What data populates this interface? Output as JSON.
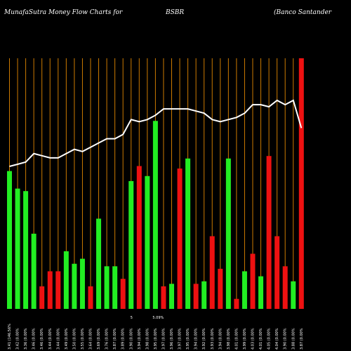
{
  "header": {
    "left": "MunafaSutra  Money Flow  Charts for",
    "center": "BSBR",
    "right": "(Banco   Santander"
  },
  "colors": {
    "background": "#000000",
    "up": "#22ee22",
    "down": "#ee1111",
    "line": "#ffffff",
    "grid": "#cc7a00",
    "label": "#ffffff"
  },
  "chart_data": {
    "type": "bar",
    "title": "",
    "categories": [
      "3.41 (146.56%",
      "3.42 (0.00%",
      "3.36 (0.00%",
      "3.46 (0.00%",
      "3.46 (0.00%",
      "3.44 (0.00%",
      "3.44 (0.00%",
      "3.49 (0.00%",
      "3.50 (0.00%",
      "3.55 (0.00%",
      "3.64 (0.00%",
      "3.69 (0.00%",
      "3.76 (0.00%",
      "3.87 (0.00%",
      "3.89 (0.00%",
      "3.90 (0.00%",
      "3.94 (0.00%",
      "3.98 (0.00%",
      "3.95 (0.00%",
      "3.97 (0.00%",
      "3.96 (0.00%",
      "3.97 (0.00%",
      "3.95 (0.00%",
      "3.94 (0.00%",
      "3.92 (0.00%",
      "3.93 (0.00%",
      "3.94 (0.00%",
      "3.98 (0.00%",
      "4.01 (0.00%",
      "3.99 (0.00%",
      "4.03 (0.00%",
      "4.01 (0.00%",
      "4.05 (0.00%",
      "4.04 (0.00%",
      "3.90 (0.00%",
      "3.88 (0.00%",
      "3.87 (0.00%"
    ],
    "bar_colors": [
      "green",
      "green",
      "green",
      "green",
      "red",
      "red",
      "red",
      "green",
      "green",
      "green",
      "red",
      "green",
      "green",
      "green",
      "red",
      "green",
      "red",
      "green",
      "green",
      "red",
      "green",
      "red",
      "green",
      "red",
      "green",
      "red",
      "red",
      "green",
      "red",
      "green",
      "red",
      "green",
      "red",
      "red",
      "red",
      "green",
      "red"
    ],
    "flow_values": [
      55,
      48,
      47,
      30,
      9,
      15,
      15,
      23,
      18,
      20,
      9,
      36,
      17,
      17,
      12,
      51,
      57,
      53,
      75,
      9,
      10,
      56,
      60,
      10,
      11,
      29,
      16,
      60,
      4,
      15,
      22,
      13,
      61,
      29,
      17,
      11,
      100
    ],
    "price_line": [
      57,
      58,
      59,
      63,
      62,
      61,
      61,
      63,
      65,
      64,
      66,
      68,
      70,
      70,
      72,
      79,
      78,
      79,
      81,
      84,
      84,
      84,
      84,
      83,
      82,
      79,
      78,
      79,
      80,
      82,
      86,
      86,
      85,
      88,
      86,
      88,
      75
    ],
    "annotations": [
      "5",
      "5.09%"
    ]
  }
}
